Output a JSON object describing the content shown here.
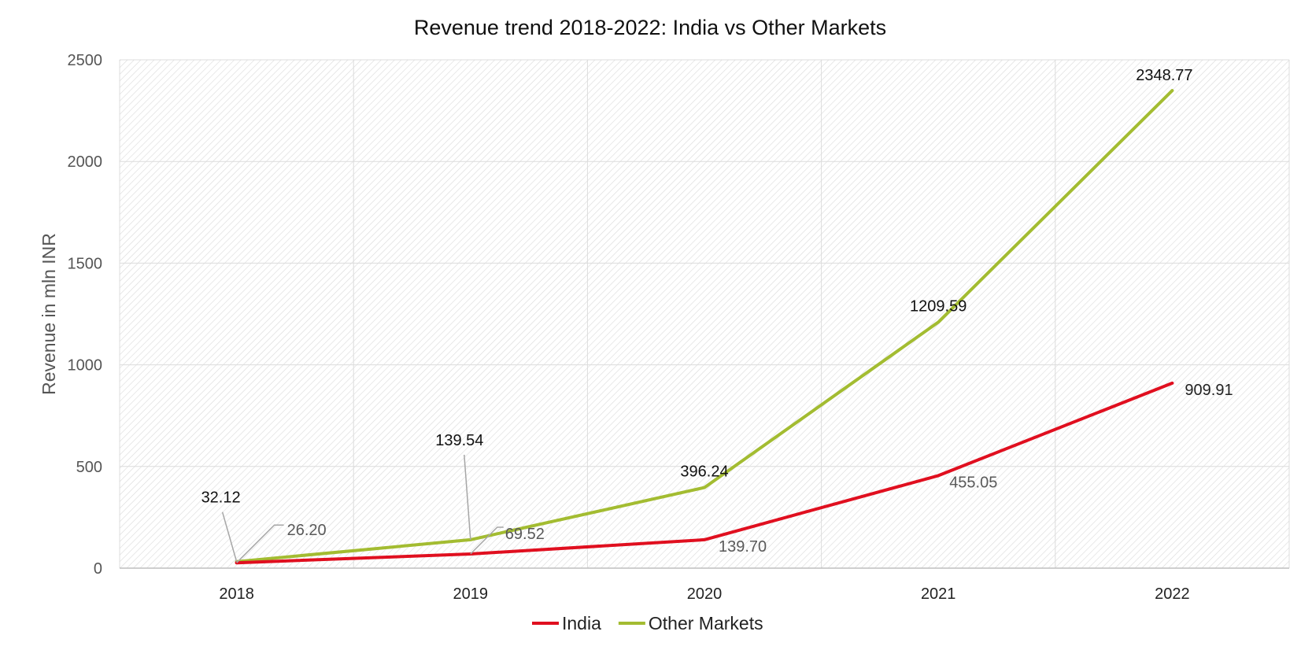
{
  "chart_data": {
    "type": "line",
    "title": "Revenue trend 2018-2022: India vs Other Markets",
    "xlabel": "",
    "ylabel": "Revenue in mln INR",
    "categories": [
      "2018",
      "2019",
      "2020",
      "2021",
      "2022"
    ],
    "ylim": [
      0,
      2500
    ],
    "yticks": [
      0,
      500,
      1000,
      1500,
      2000,
      2500
    ],
    "grid": true,
    "legend_position": "bottom",
    "series": [
      {
        "name": "India",
        "color": "#e00f1f",
        "values": [
          26.2,
          69.52,
          139.7,
          455.05,
          909.91
        ],
        "labels": [
          "26.20",
          "69.52",
          "139.70",
          "455.05",
          "909.91"
        ]
      },
      {
        "name": "Other Markets",
        "color": "#a3bc31",
        "values": [
          32.12,
          139.54,
          396.24,
          1209.59,
          2348.77
        ],
        "labels": [
          "32.12",
          "139.54",
          "396.24",
          "1209.59",
          "2348.77"
        ]
      }
    ]
  }
}
